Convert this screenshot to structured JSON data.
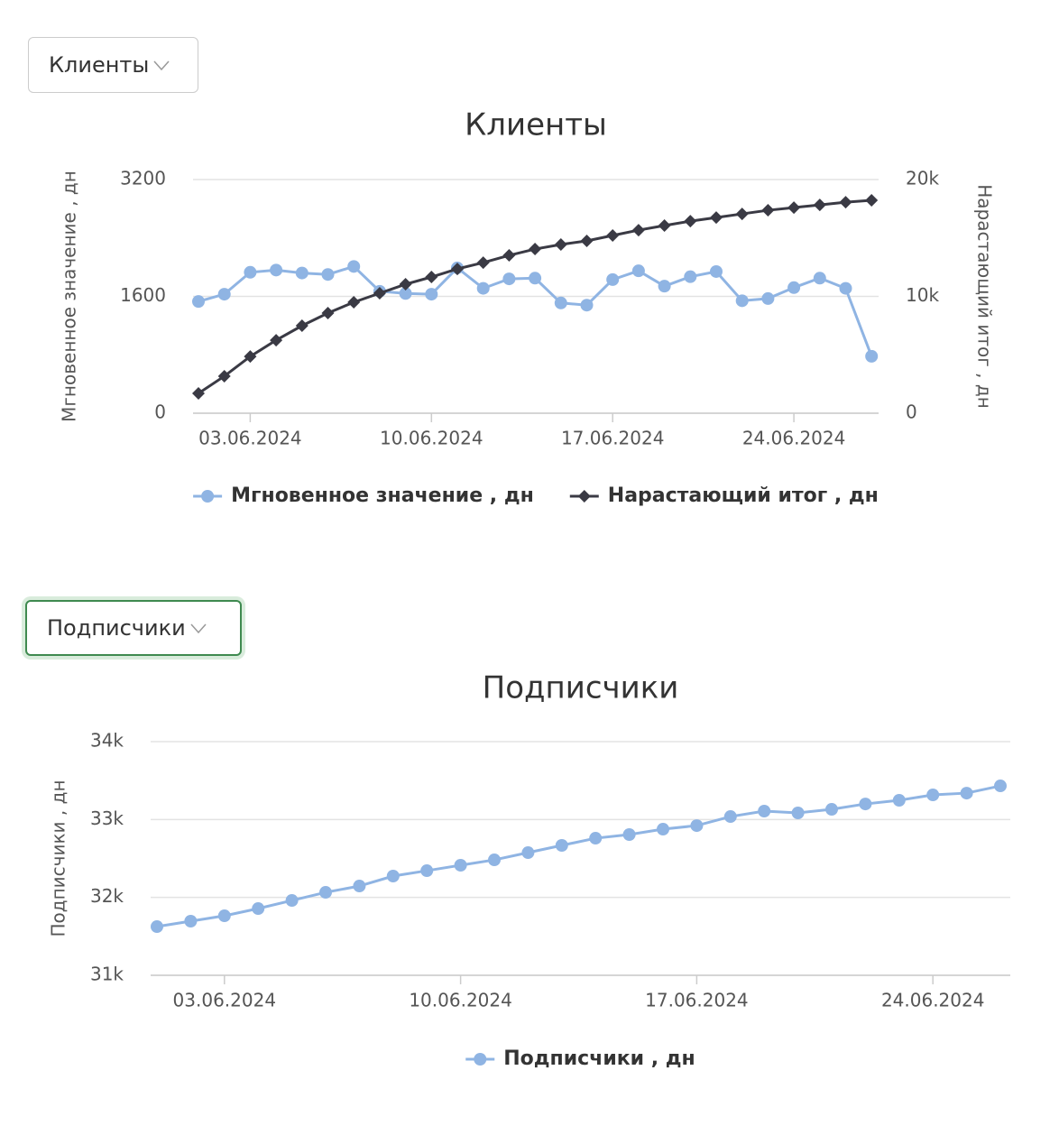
{
  "controls": [
    {
      "label": "Клиенты"
    },
    {
      "label": "Подписчики"
    }
  ],
  "chart_data": [
    {
      "type": "line",
      "title": "Клиенты",
      "y_label": "Мгновенное значение , дн",
      "y2_label": "Нарастающий итог , дн",
      "categories": [
        null,
        null,
        "03.06.2024",
        null,
        null,
        null,
        null,
        null,
        null,
        "10.06.2024",
        null,
        null,
        null,
        null,
        null,
        null,
        "17.06.2024",
        null,
        null,
        null,
        null,
        null,
        null,
        "24.06.2024",
        null,
        null,
        null
      ],
      "ylim": [
        0,
        3200
      ],
      "yticks": [
        0,
        1600,
        3200
      ],
      "y2lim": [
        0,
        20000
      ],
      "y2ticks": [
        {
          "value": 0,
          "label": "0"
        },
        {
          "value": 10000,
          "label": "10k"
        },
        {
          "value": 20000,
          "label": "20k"
        }
      ],
      "grid": true,
      "series": [
        {
          "name": "Мгновенное значение , дн",
          "color": "#8fb4e3",
          "marker": "circle",
          "values": [
            1530,
            1630,
            1930,
            1960,
            1920,
            1900,
            2010,
            1670,
            1640,
            1630,
            1990,
            1710,
            1840,
            1850,
            1510,
            1480,
            1830,
            1950,
            1740,
            1870,
            1940,
            1540,
            1570,
            1720,
            1850,
            1710,
            780
          ]
        },
        {
          "name": "Нарастающий итог , дн",
          "color": "#3a3a44",
          "marker": "diamond",
          "axis": "y2",
          "values": [
            1700,
            3170,
            4860,
            6250,
            7490,
            8570,
            9500,
            10270,
            11040,
            11660,
            12350,
            12890,
            13510,
            14050,
            14440,
            14750,
            15210,
            15670,
            16060,
            16440,
            16750,
            17060,
            17370,
            17600,
            17830,
            18060,
            18220
          ]
        }
      ]
    },
    {
      "type": "line",
      "title": "Подписчики",
      "y_label": "Подписчики , дн",
      "categories": [
        null,
        null,
        "03.06.2024",
        null,
        null,
        null,
        null,
        null,
        null,
        "10.06.2024",
        null,
        null,
        null,
        null,
        null,
        null,
        "17.06.2024",
        null,
        null,
        null,
        null,
        null,
        null,
        "24.06.2024",
        null,
        null
      ],
      "ylim": [
        31000,
        34000
      ],
      "yticks": [
        {
          "value": 31000,
          "label": "31k"
        },
        {
          "value": 32000,
          "label": "32k"
        },
        {
          "value": 33000,
          "label": "33k"
        },
        {
          "value": 34000,
          "label": "34k"
        }
      ],
      "grid": true,
      "series": [
        {
          "name": "Подписчики , дн",
          "color": "#8fb4e3",
          "marker": "circle",
          "values": [
            31625,
            31695,
            31764,
            31857,
            31961,
            32065,
            32146,
            32274,
            32343,
            32413,
            32482,
            32575,
            32668,
            32760,
            32807,
            32876,
            32922,
            33038,
            33108,
            33085,
            33131,
            33200,
            33247,
            33316,
            33339,
            33432
          ]
        }
      ]
    }
  ]
}
